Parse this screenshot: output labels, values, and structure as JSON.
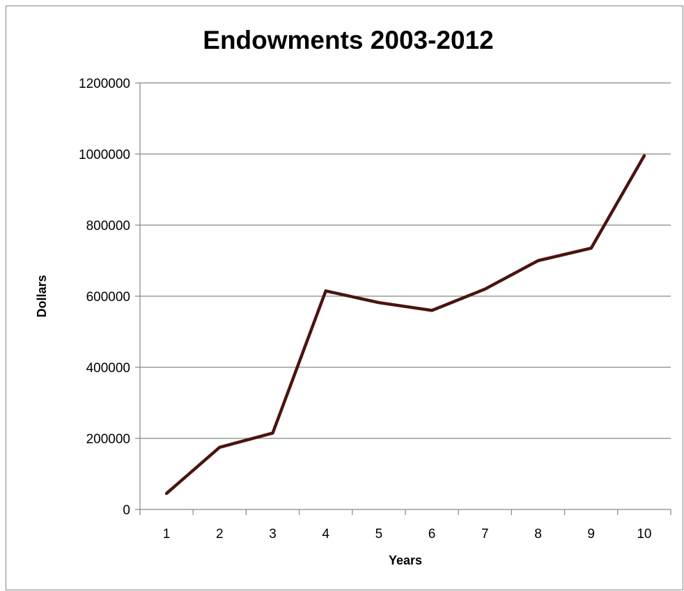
{
  "chart_data": {
    "type": "line",
    "title": "Endowments 2003-2012",
    "xlabel": "Years",
    "ylabel": "Dollars",
    "categories": [
      "1",
      "2",
      "3",
      "4",
      "5",
      "6",
      "7",
      "8",
      "9",
      "10"
    ],
    "y_ticks": [
      "0",
      "200000",
      "400000",
      "600000",
      "800000",
      "1000000",
      "1200000"
    ],
    "ylim": [
      0,
      1200000
    ],
    "grid": true,
    "legend": "none",
    "series": [
      {
        "values": [
          45000,
          175000,
          215000,
          615000,
          582000,
          560000,
          620000,
          700000,
          735000,
          995000
        ],
        "color": "#4a1410"
      }
    ]
  }
}
